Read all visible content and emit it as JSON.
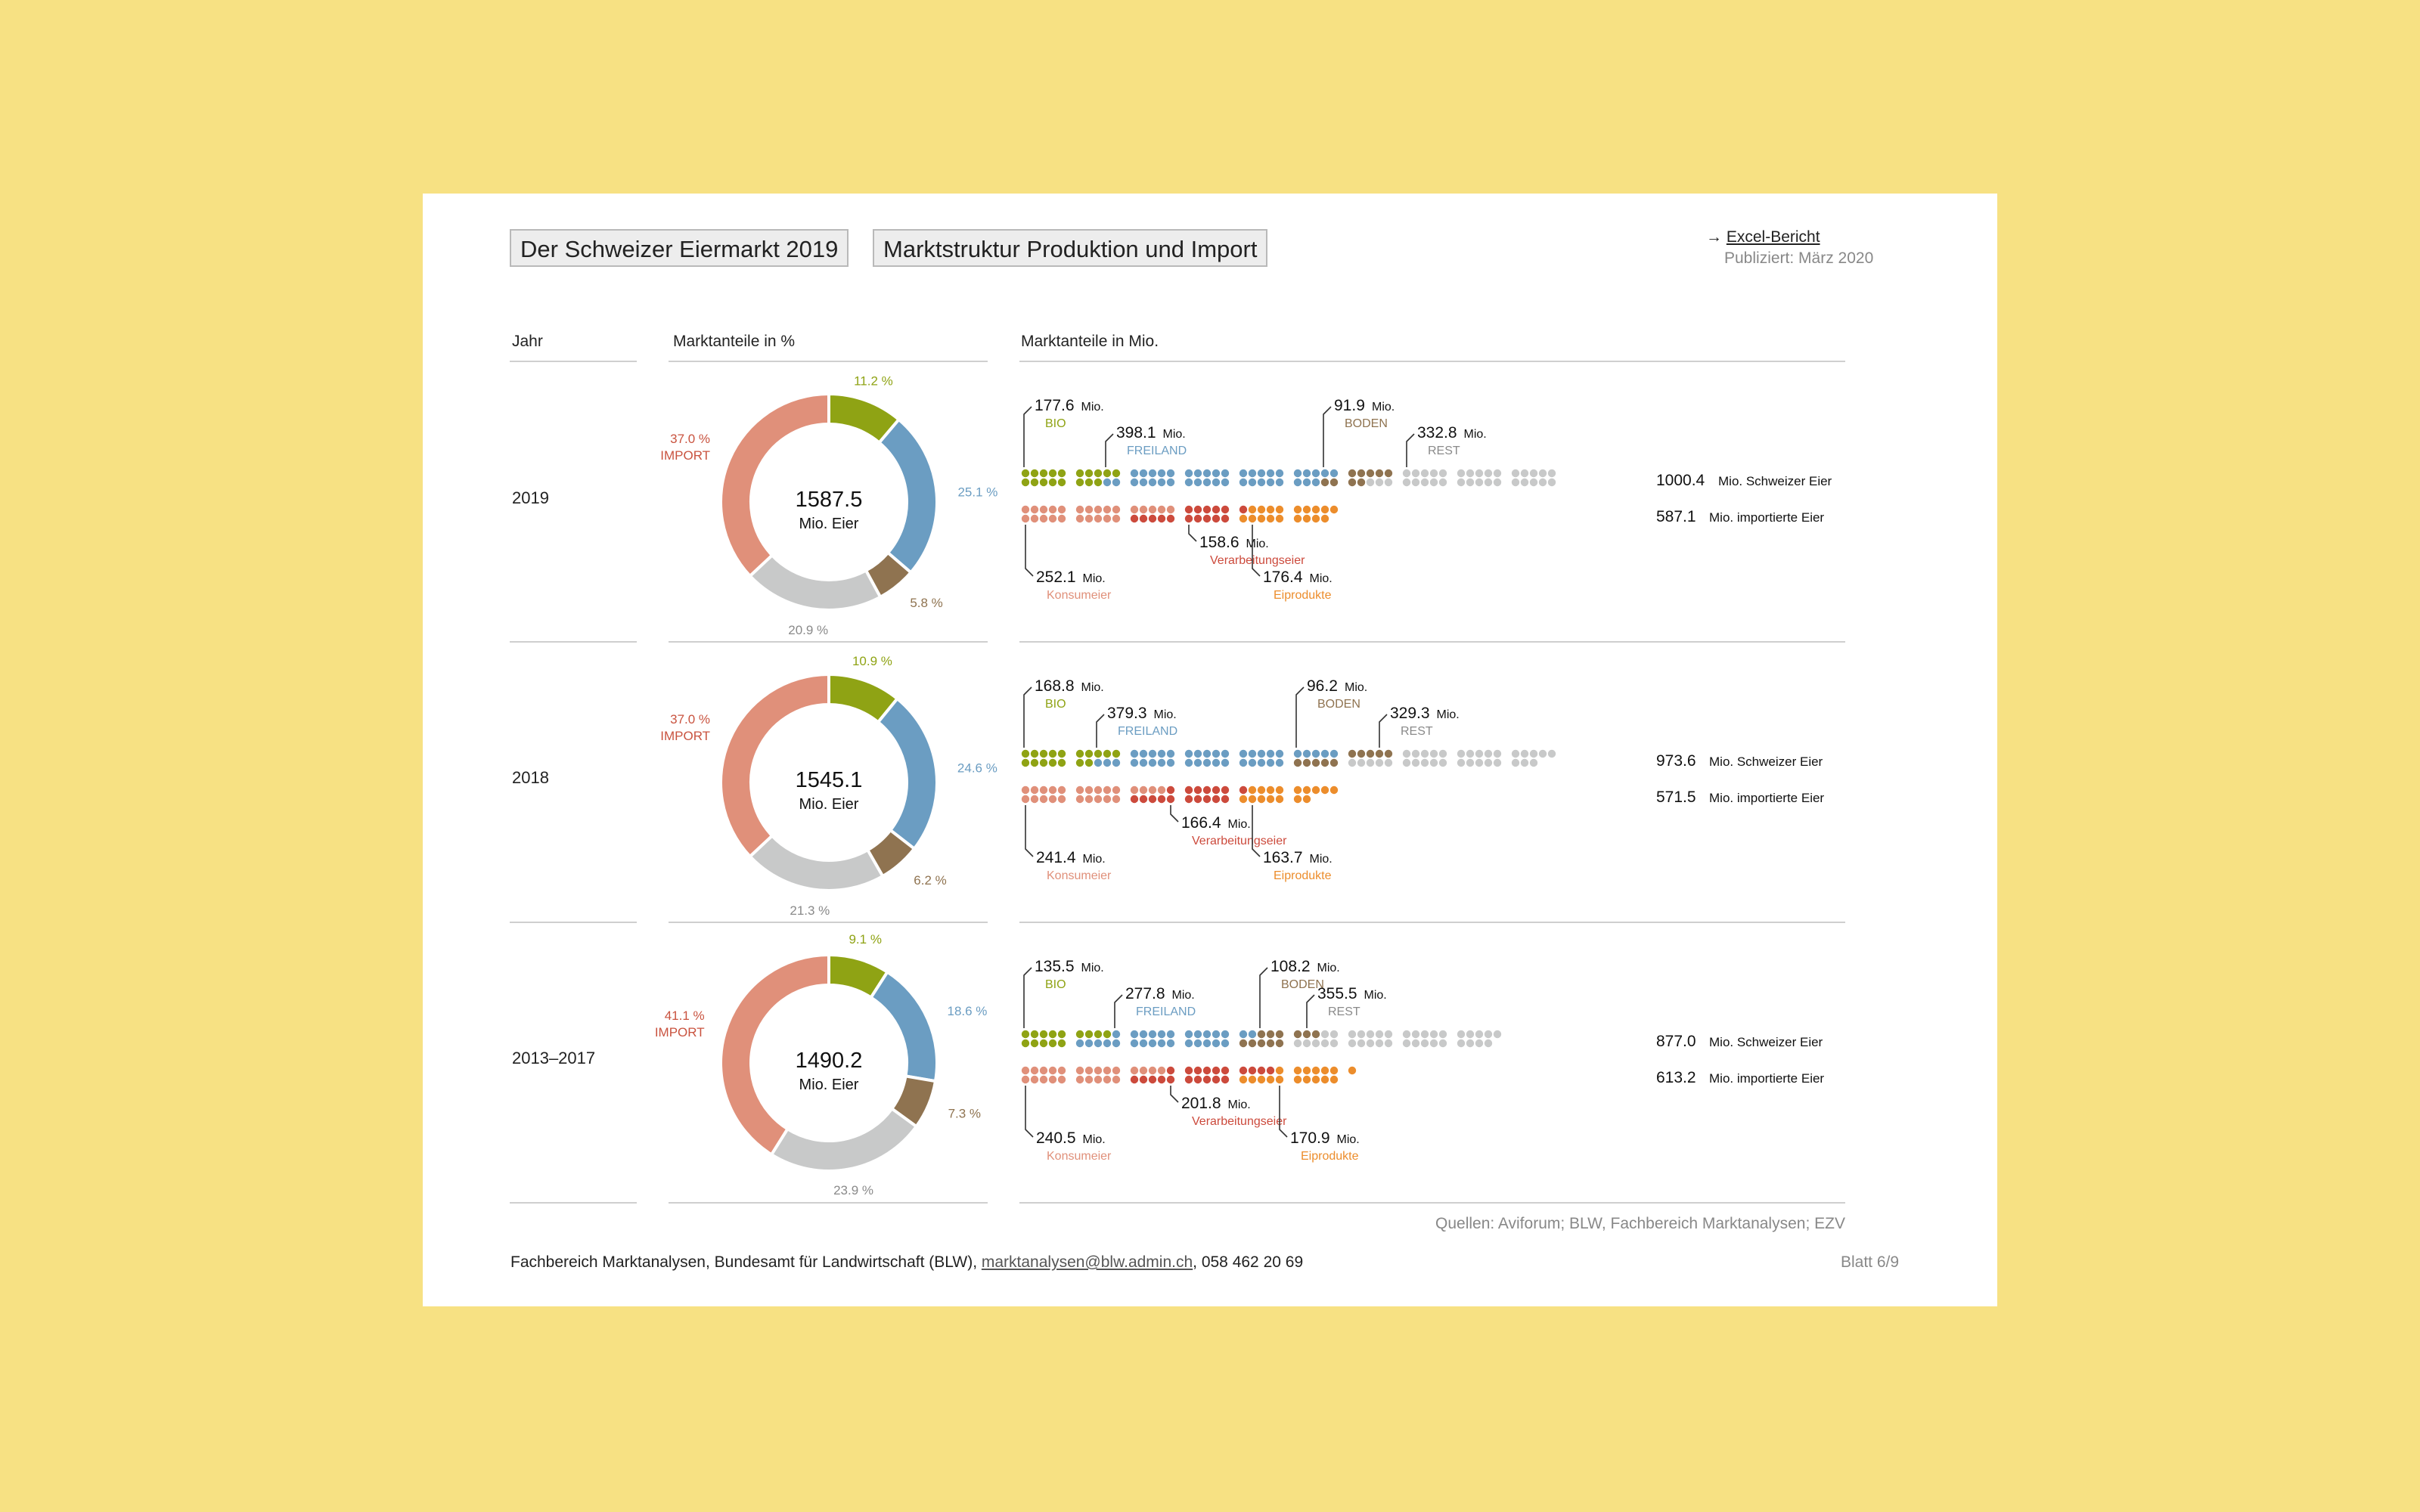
{
  "header": {
    "title": "Der Schweizer Eiermarkt 2019",
    "subtitle": "Marktstruktur Produktion und Import",
    "excel_arrow": "→",
    "excel_link": "Excel-Bericht",
    "published": "Publiziert: März 2020"
  },
  "columns": {
    "year": "Jahr",
    "shares_percent": "Marktanteile in %",
    "shares_mio": "Marktanteile in Mio."
  },
  "colors": {
    "bio": "#8fa314",
    "freiland": "#6b9dc2",
    "boden": "#8f7350",
    "rest": "#c8c9c9",
    "import": "#e0907a",
    "konsum": "#e0907a",
    "verarbeitung": "#cc4a3c",
    "eiprodukte": "#ec8d2c"
  },
  "legend_labels": {
    "bio": "BIO",
    "freiland": "FREILAND",
    "boden": "BODEN",
    "rest": "REST",
    "import": "IMPORT",
    "konsum": "Konsumeier",
    "verarbeitung": "Verarbeitungseier",
    "eiprodukte": "Eiprodukte",
    "mio": "Mio.",
    "mio_eier": "Mio. Eier",
    "swiss_total_label": "Mio. Schweizer Eier",
    "import_total_label": "Mio. importierte Eier"
  },
  "chart_data": [
    {
      "type": "pie",
      "year": "2019",
      "total": "1587.5",
      "shares": {
        "bio": "11.2 %",
        "freiland": "25.1 %",
        "boden": "5.8 %",
        "rest": "20.9 %",
        "import": "37.0 %"
      },
      "shares_values": [
        11.2,
        25.1,
        5.8,
        20.9,
        37.0
      ],
      "swiss": {
        "bio": "177.6",
        "freiland": "398.1",
        "boden": "91.9",
        "rest": "332.8",
        "total": "1000.4"
      },
      "swiss_values": [
        177.6,
        398.1,
        91.9,
        332.8
      ],
      "imports": {
        "konsum": "252.1",
        "verarbeitung": "158.6",
        "eiprodukte": "176.4",
        "total": "587.1"
      },
      "import_values": [
        252.1,
        158.6,
        176.4
      ]
    },
    {
      "type": "pie",
      "year": "2018",
      "total": "1545.1",
      "shares": {
        "bio": "10.9 %",
        "freiland": "24.6 %",
        "boden": "6.2 %",
        "rest": "21.3 %",
        "import": "37.0 %"
      },
      "shares_values": [
        10.9,
        24.6,
        6.2,
        21.3,
        37.0
      ],
      "swiss": {
        "bio": "168.8",
        "freiland": "379.3",
        "boden": "96.2",
        "rest": "329.3",
        "total": "973.6"
      },
      "swiss_values": [
        168.8,
        379.3,
        96.2,
        329.3
      ],
      "imports": {
        "konsum": "241.4",
        "verarbeitung": "166.4",
        "eiprodukte": "163.7",
        "total": "571.5"
      },
      "import_values": [
        241.4,
        166.4,
        163.7
      ]
    },
    {
      "type": "pie",
      "year": "2013–2017",
      "total": "1490.2",
      "shares": {
        "bio": "9.1 %",
        "freiland": "18.6 %",
        "boden": "7.3 %",
        "rest": "23.9 %",
        "import": "41.1 %"
      },
      "shares_values": [
        9.1,
        18.6,
        7.3,
        23.9,
        41.1
      ],
      "swiss": {
        "bio": "135.5",
        "freiland": "277.8",
        "boden": "108.2",
        "rest": "355.5",
        "total": "877.0"
      },
      "swiss_values": [
        135.5,
        277.8,
        108.2,
        355.5
      ],
      "imports": {
        "konsum": "240.5",
        "verarbeitung": "201.8",
        "eiprodukte": "170.9",
        "total": "613.2"
      },
      "import_values": [
        240.5,
        201.8,
        170.9
      ]
    }
  ],
  "footer": {
    "sources": "Quellen: Aviforum; BLW, Fachbereich Marktanalysen; EZV",
    "org": "Fachbereich Marktanalysen, Bundesamt für Landwirtschaft (BLW), ",
    "email": "marktanalysen@blw.admin.ch",
    "phone": ", 058 462 20 69",
    "sheet": "Blatt 6/9"
  }
}
